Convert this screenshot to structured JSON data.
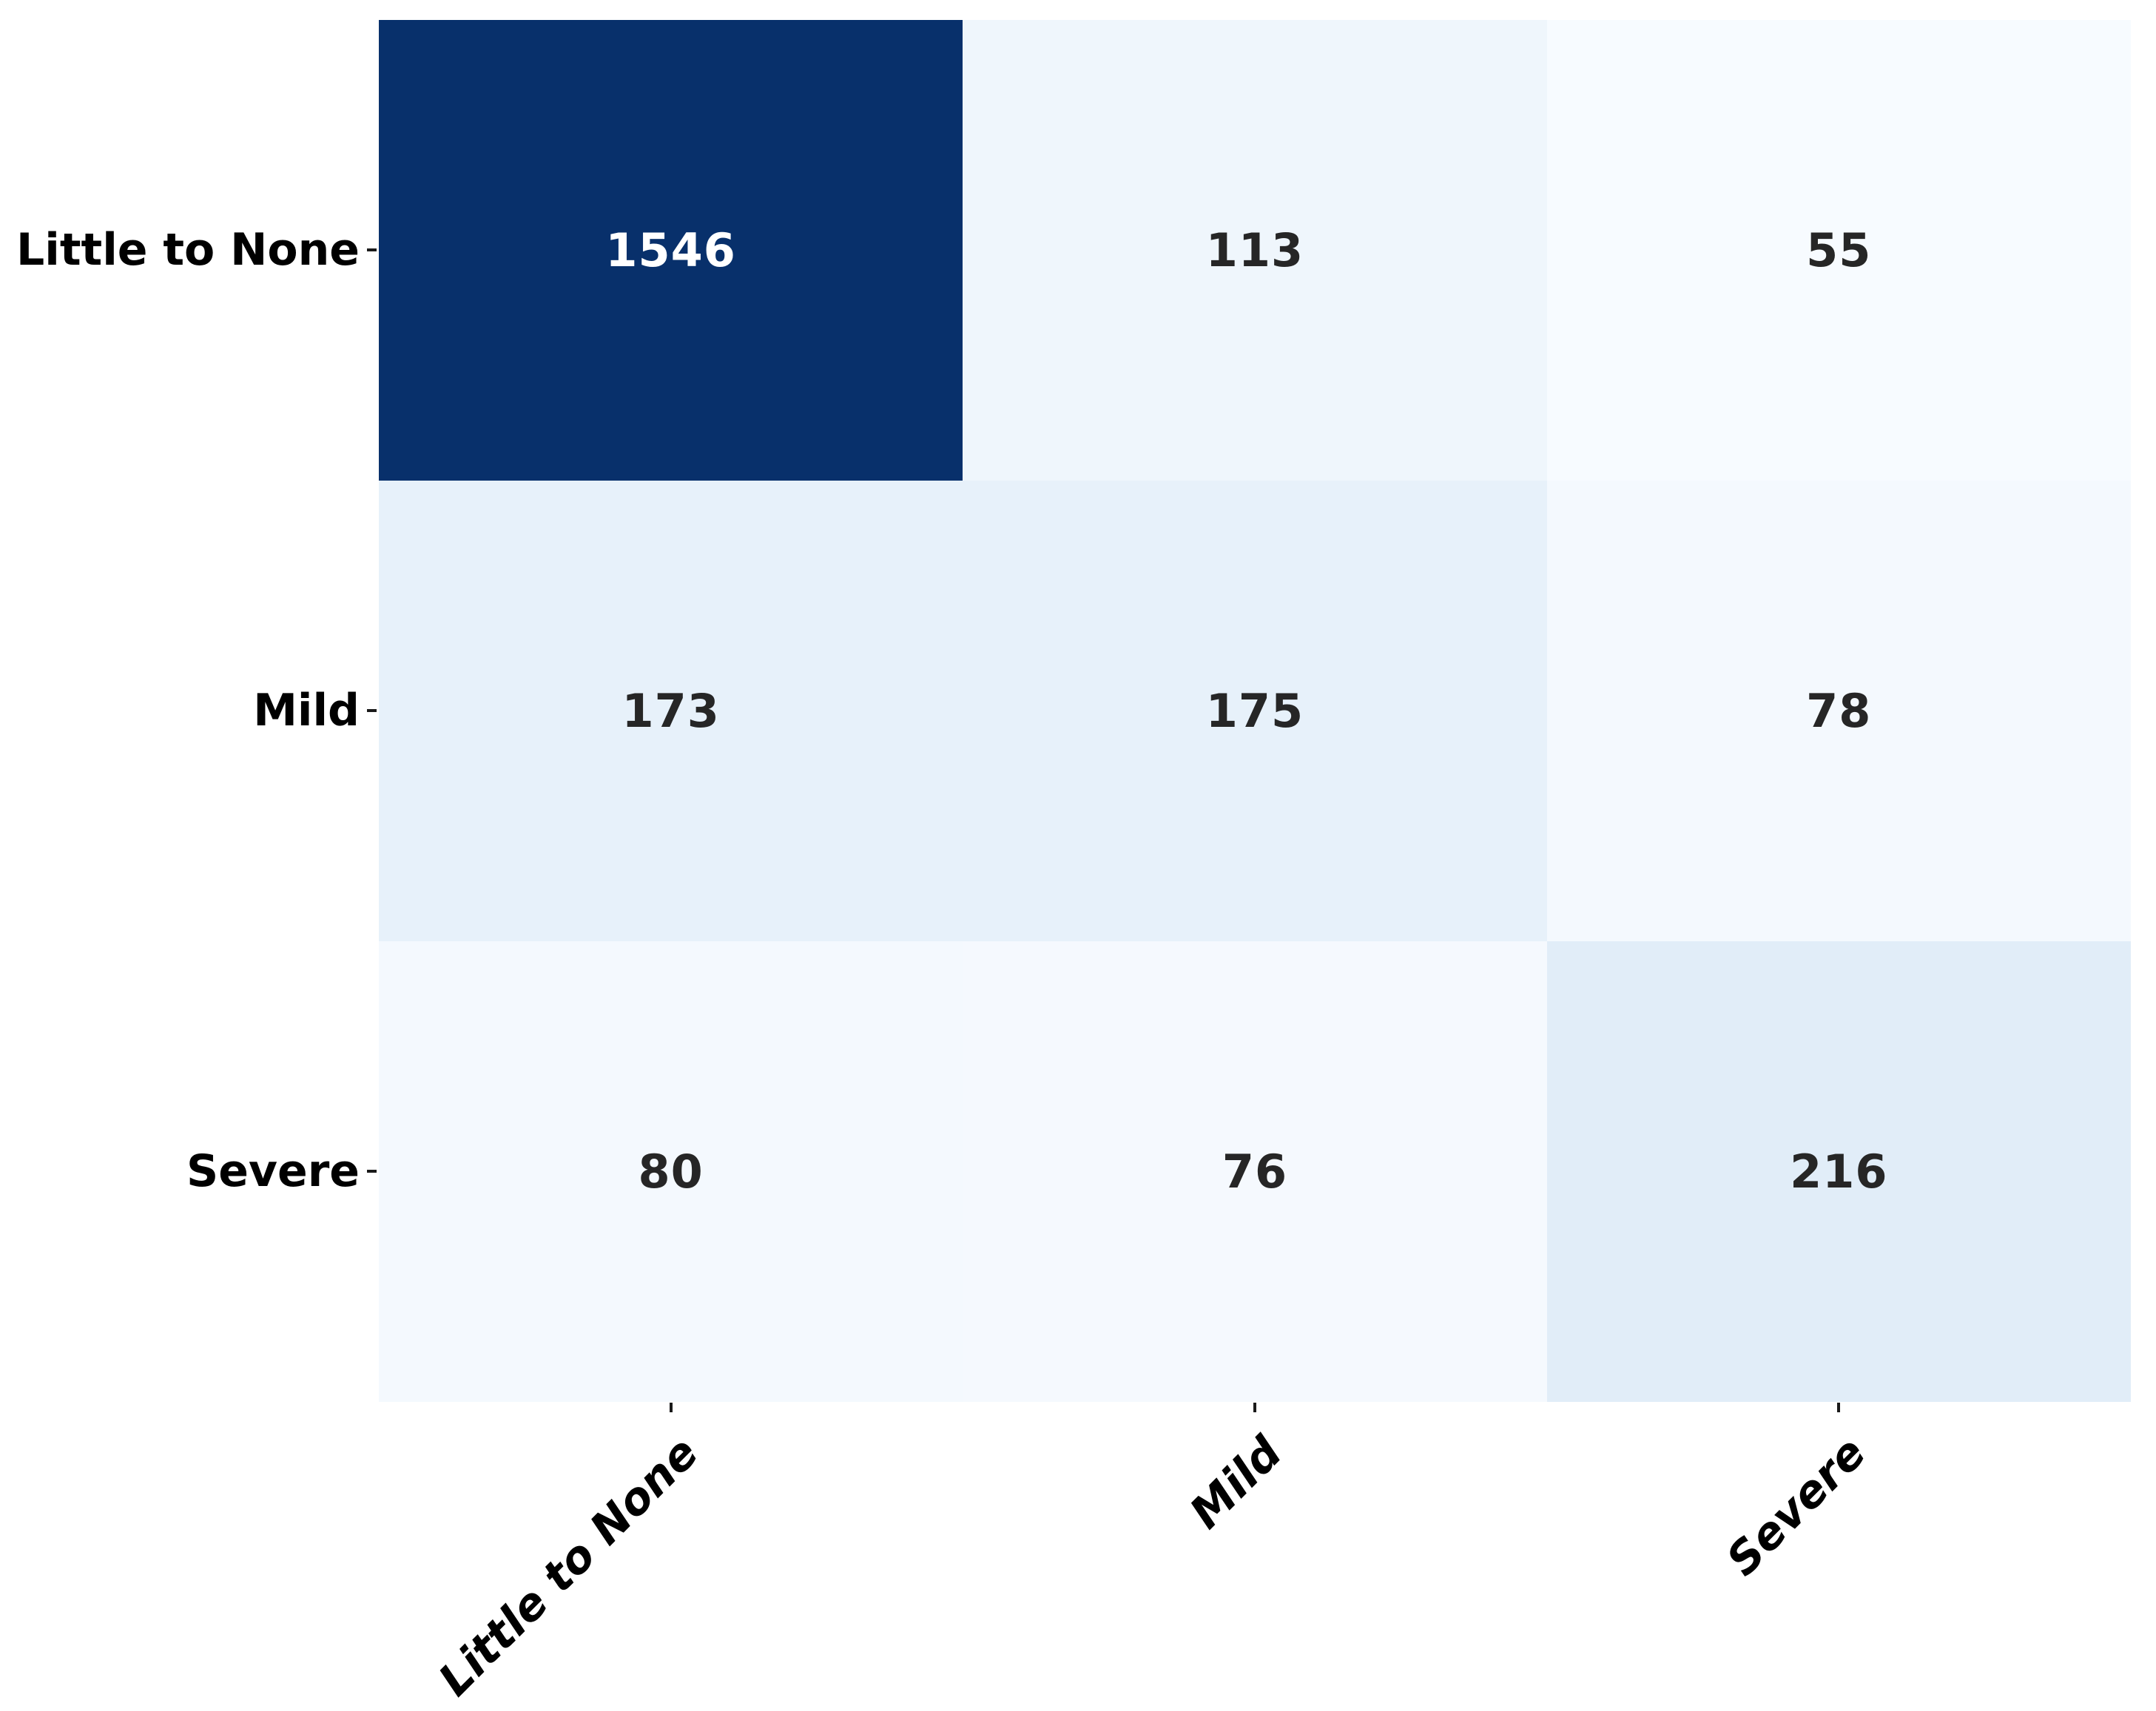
{
  "chart_data": {
    "type": "heatmap",
    "title": "",
    "xlabel": "",
    "ylabel": "",
    "colormap": "Blues",
    "legend": "none",
    "grid": false,
    "x_categories": [
      "Little to None",
      "Mild",
      "Severe"
    ],
    "y_categories": [
      "Little to None",
      "Mild",
      "Severe"
    ],
    "values": [
      [
        1546,
        113,
        55
      ],
      [
        173,
        175,
        78
      ],
      [
        80,
        76,
        216
      ]
    ],
    "value_range": [
      55,
      1546
    ],
    "cell_colors": [
      [
        "#08306b",
        "#eff6fc",
        "#f7fbff"
      ],
      [
        "#e7f1fa",
        "#e7f1fa",
        "#f4f9fe"
      ],
      [
        "#f4f9fe",
        "#f5f9fe",
        "#e1edf8"
      ]
    ],
    "text_colors": [
      [
        "#ffffff",
        "#262626",
        "#262626"
      ],
      [
        "#262626",
        "#262626",
        "#262626"
      ],
      [
        "#262626",
        "#262626",
        "#262626"
      ]
    ],
    "tick_color": "#1a1a1a"
  }
}
